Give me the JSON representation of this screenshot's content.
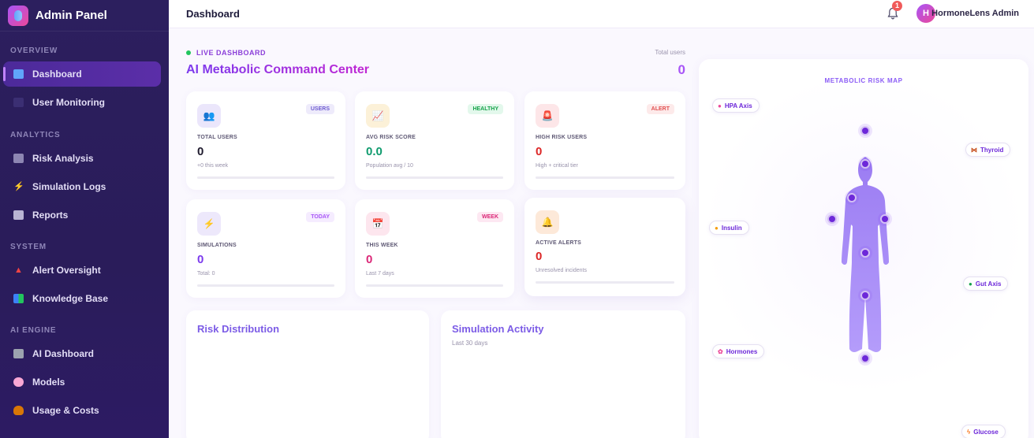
{
  "sidebar": {
    "brand": "Admin Panel",
    "sections": {
      "overview": "OVERVIEW",
      "analytics": "ANALYTICS",
      "system": "SYSTEM",
      "ai_engine": "AI ENGINE"
    },
    "items": [
      {
        "label": "Dashboard",
        "icon": "bar-chart-icon",
        "active": true
      },
      {
        "label": "User Monitoring",
        "icon": "users-icon"
      },
      {
        "label": "Risk Analysis",
        "icon": "trend-chart-icon"
      },
      {
        "label": "Simulation Logs",
        "icon": "lightning-icon"
      },
      {
        "label": "Reports",
        "icon": "document-icon"
      },
      {
        "label": "Alert Oversight",
        "icon": "siren-icon"
      },
      {
        "label": "Knowledge Base",
        "icon": "books-icon"
      },
      {
        "label": "AI Dashboard",
        "icon": "robot-icon"
      },
      {
        "label": "Models",
        "icon": "brain-icon"
      },
      {
        "label": "Usage & Costs",
        "icon": "money-bag-icon"
      }
    ]
  },
  "header": {
    "title": "Dashboard",
    "notification_count": "1",
    "avatar_initial": "H",
    "user_name": "HormoneLens Admin"
  },
  "main": {
    "live_label": "LIVE DASHBOARD",
    "title": "AI Metabolic Command Center",
    "total_users_label": "Total users",
    "total_users_value": "0",
    "stats": [
      {
        "label": "TOTAL USERS",
        "value": "0",
        "sub": "+0 this week",
        "tag": "USERS",
        "icon": "users-icon",
        "value_color": "#1f1b2e",
        "tag_color": "#6d5bd0",
        "tag_bg": "#eeebfb",
        "icon_bg": "#ebe6fb"
      },
      {
        "label": "AVG RISK SCORE",
        "value": "0.0",
        "sub": "Population avg / 10",
        "tag": "HEALTHY",
        "icon": "trend-chart-icon",
        "value_color": "#0f9b6e",
        "tag_color": "#16a34a",
        "tag_bg": "#e3f8ec",
        "icon_bg": "#fcf1d8"
      },
      {
        "label": "HIGH RISK USERS",
        "value": "0",
        "sub": "High + critical tier",
        "tag": "ALERT",
        "icon": "siren-icon",
        "value_color": "#dc2626",
        "tag_color": "#e25252",
        "tag_bg": "#fdeaea",
        "icon_bg": "#fde6e8"
      },
      {
        "label": "SIMULATIONS",
        "value": "0",
        "sub": "Total: 0",
        "tag": "TODAY",
        "icon": "lightning-icon",
        "value_color": "#7c3aed",
        "tag_color": "#a855f7",
        "tag_bg": "#f5ecff",
        "icon_bg": "#ede8fb"
      },
      {
        "label": "THIS WEEK",
        "value": "0",
        "sub": "Last 7 days",
        "tag": "WEEK",
        "icon": "calendar-icon",
        "value_color": "#db2777",
        "tag_color": "#db2777",
        "tag_bg": "#fde8f2",
        "icon_bg": "#fde6ee"
      },
      {
        "label": "ACTIVE ALERTS",
        "value": "0",
        "sub": "Unresolved incidents",
        "tag": "",
        "icon": "bell-icon",
        "value_color": "#dc2626",
        "tag_color": "",
        "tag_bg": "",
        "icon_bg": "#fde9d9"
      }
    ],
    "panels": {
      "risk_title": "Risk Distribution",
      "activity_title": "Simulation Activity",
      "activity_sub": "Last 30 days"
    }
  },
  "risk_map": {
    "title": "METABOLIC RISK MAP",
    "labels": [
      {
        "text": "HPA Axis",
        "icon": "brain-icon"
      },
      {
        "text": "Thyroid",
        "icon": "butterfly-icon"
      },
      {
        "text": "Insulin",
        "icon": "muscle-icon"
      },
      {
        "text": "Gut Axis",
        "icon": "gut-icon"
      },
      {
        "text": "Hormones",
        "icon": "flower-icon"
      },
      {
        "text": "Glucose",
        "icon": "lightning-icon"
      }
    ]
  }
}
